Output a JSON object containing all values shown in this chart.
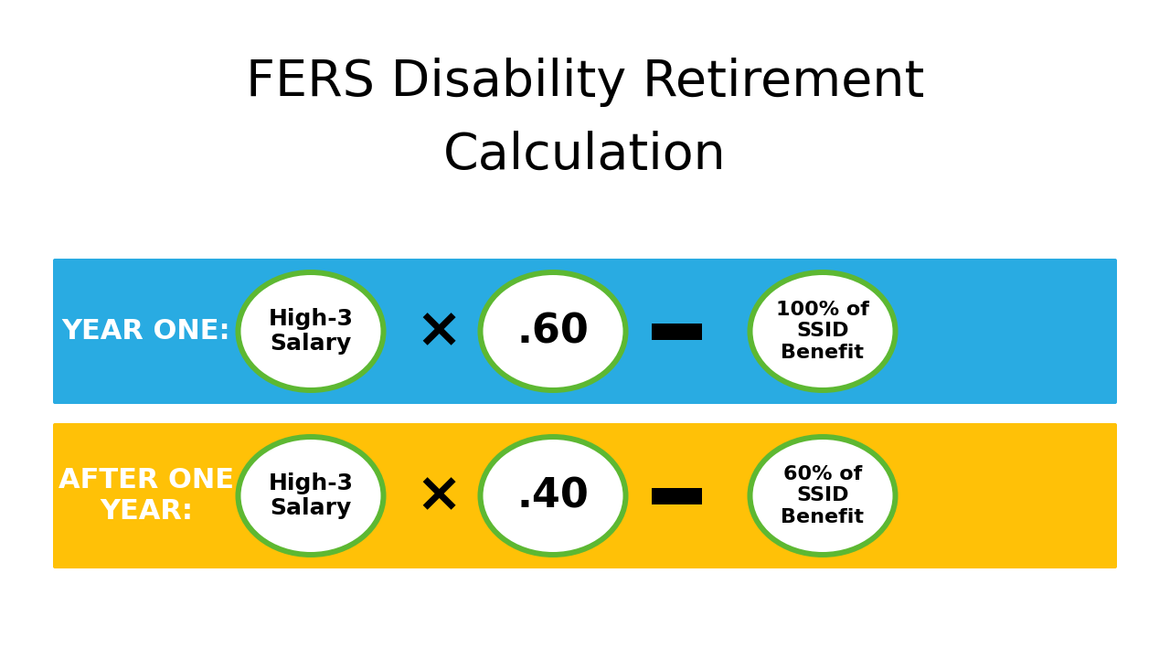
{
  "title_line1": "FERS Disability Retirement",
  "title_line2": "Calculation",
  "title_fontsize": 40,
  "title_color": "#000000",
  "background_color": "#ffffff",
  "row1": {
    "bg_color": "#29ABE2",
    "label": "YEAR ONE:",
    "label_color": "#ffffff",
    "label_fontsize": 22,
    "oval1_text": "High-3\nSalary",
    "operator1": "×",
    "oval2_text": ".60",
    "oval3_text": "100% of\nSSID\nBenefit",
    "oval_fill": "#ffffff",
    "oval_edge": "#5DB832",
    "text_color": "#000000"
  },
  "row2": {
    "bg_color": "#FFC107",
    "label": "AFTER ONE\nYEAR:",
    "label_color": "#ffffff",
    "label_fontsize": 22,
    "oval1_text": "High-3\nSalary",
    "operator1": "×",
    "oval2_text": ".40",
    "oval3_text": "60% of\nSSID\nBenefit",
    "oval_fill": "#ffffff",
    "oval_edge": "#5DB832",
    "text_color": "#000000"
  }
}
